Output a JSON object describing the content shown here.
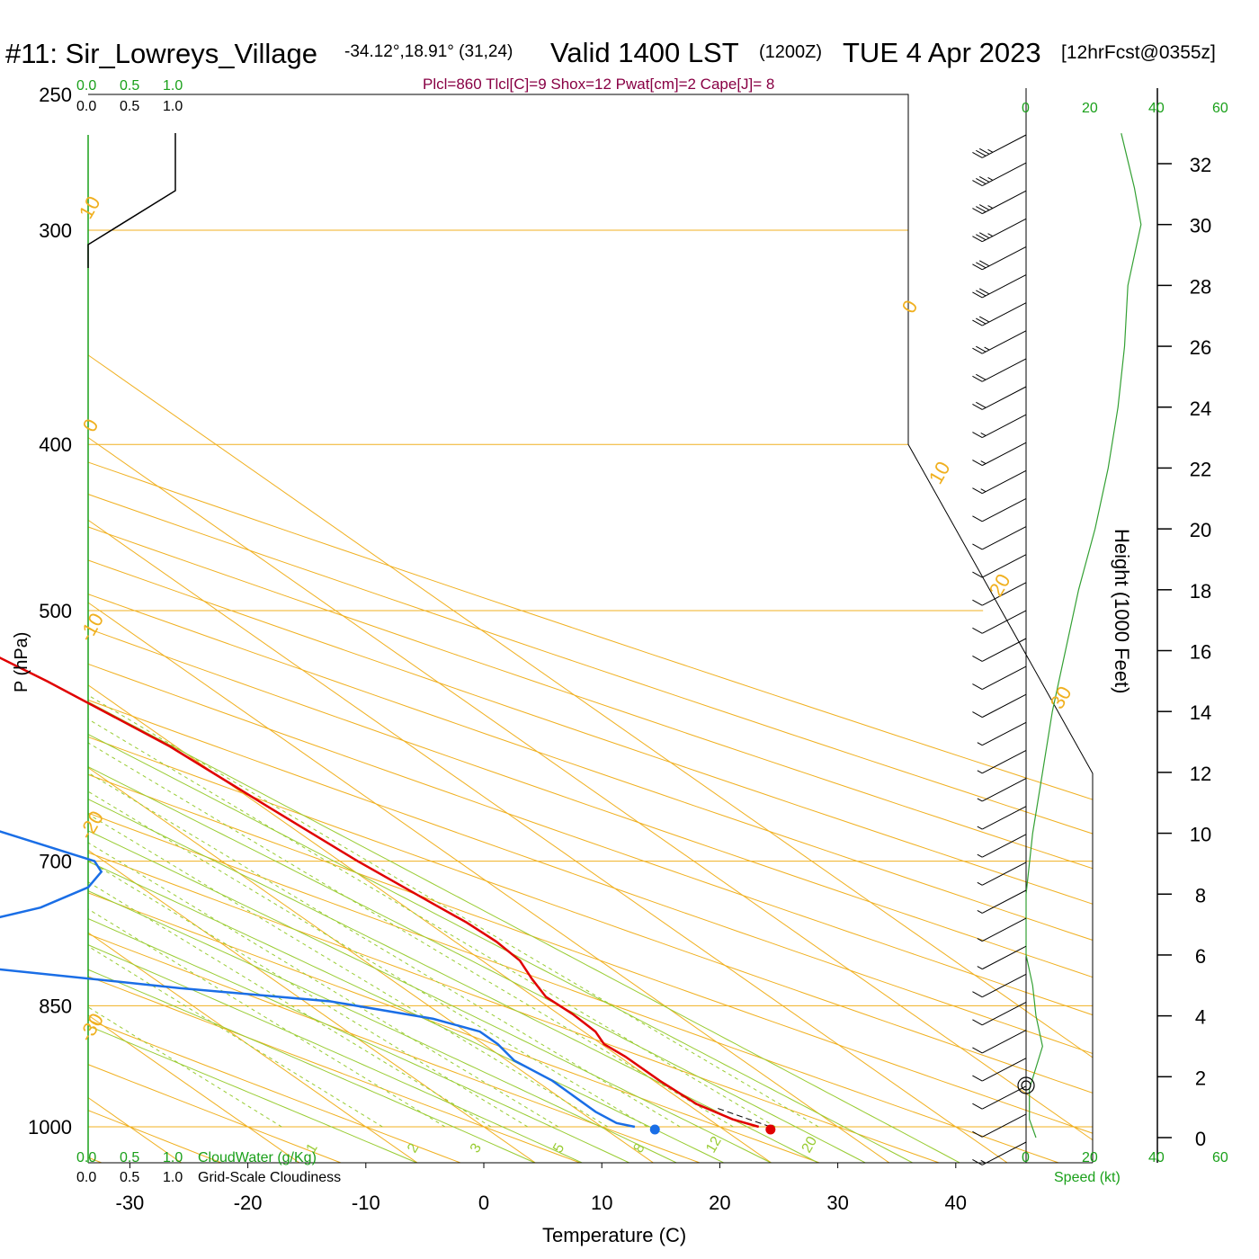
{
  "header": {
    "station": "#11: Sir_Lowreys_Village",
    "coords": "-34.12°,18.91° (31,24)",
    "valid": "Valid 1400 LST",
    "utc": "(1200Z)",
    "date": "TUE 4 Apr 2023",
    "forecast": "[12hrFcst@0355z]"
  },
  "diagnostics": "Plcl=860 Tlcl[C]=9 Shox=12 Pwat[cm]=2 Cape[J]= 8",
  "axes": {
    "ylabel": "P (hPa)",
    "xlabel": "Temperature (C)",
    "height_label": "Height (1000 Feet)",
    "speed_label": "Speed (kt)",
    "cloudwater_label": "CloudWater (g/Kg)",
    "cloudiness_label": "Grid-Scale Cloudiness"
  },
  "scale_labels": {
    "cloud_top_green": [
      "0.0",
      "0.5",
      "1.0"
    ],
    "cloud_top_black": [
      "0.0",
      "0.5",
      "1.0"
    ],
    "cloud_bottom_green": [
      "0.0",
      "0.5",
      "1.0"
    ],
    "cloud_bottom_black": [
      "0.0",
      "0.5",
      "1.0"
    ],
    "speed_top": [
      "0",
      "20",
      "40",
      "60"
    ],
    "speed_bottom": [
      "0",
      "20",
      "40",
      "60"
    ]
  },
  "colors": {
    "temperature": "#e00000",
    "dewpoint": "#1a6ee6",
    "isobar": "#f0b020",
    "dry_adiabat": "#f0b020",
    "moist_adiabat": "#99cc33",
    "mixing_ratio": "#99cc33",
    "wind_speed": "#33a033",
    "diagnostics": "#880044"
  },
  "chart_data": {
    "type": "skew-t",
    "pressure_ticks": [
      250,
      300,
      400,
      500,
      700,
      850,
      1000
    ],
    "temperature_ticks": [
      -30,
      -20,
      -10,
      0,
      10,
      20,
      30,
      40
    ],
    "height_ticks_kft": [
      0,
      2,
      4,
      6,
      8,
      10,
      12,
      14,
      16,
      18,
      20,
      22,
      24,
      26,
      28,
      30,
      32
    ],
    "isotherm_labels": [
      "10",
      "0",
      "-10",
      "-20",
      "-30",
      "0",
      "10",
      "20",
      "30"
    ],
    "mixing_ratio_labels": [
      "1",
      "2",
      "3",
      "5",
      "8",
      "12",
      "20"
    ],
    "surface_temperature_c": 24.3,
    "surface_dewpoint_c": 14.5,
    "temperature_profile": [
      {
        "p": 1000,
        "t": 23.3
      },
      {
        "p": 990,
        "t": 22.0
      },
      {
        "p": 970,
        "t": 20.8
      },
      {
        "p": 940,
        "t": 20.5
      },
      {
        "p": 910,
        "t": 20.5
      },
      {
        "p": 895,
        "t": 20.2
      },
      {
        "p": 880,
        "t": 21.0
      },
      {
        "p": 860,
        "t": 21.2
      },
      {
        "p": 840,
        "t": 21.0
      },
      {
        "p": 820,
        "t": 22.0
      },
      {
        "p": 800,
        "t": 23.2
      },
      {
        "p": 780,
        "t": 23.5
      },
      {
        "p": 760,
        "t": 23.3
      },
      {
        "p": 740,
        "t": 22.7
      },
      {
        "p": 700,
        "t": 21.5
      },
      {
        "p": 650,
        "t": 20.5
      },
      {
        "p": 600,
        "t": 19.5
      },
      {
        "p": 550,
        "t": 17.0
      },
      {
        "p": 500,
        "t": 13.5
      },
      {
        "p": 450,
        "t": 10.0
      },
      {
        "p": 400,
        "t": 5.0
      },
      {
        "p": 350,
        "t": -2.0
      },
      {
        "p": 300,
        "t": -9.8
      },
      {
        "p": 275,
        "t": -14.5
      },
      {
        "p": 260,
        "t": -17.5
      }
    ],
    "dewpoint_profile": [
      {
        "p": 1000,
        "t": 12.8
      },
      {
        "p": 995,
        "t": 11.7
      },
      {
        "p": 980,
        "t": 11.3
      },
      {
        "p": 940,
        "t": 11.4
      },
      {
        "p": 915,
        "t": 10.6
      },
      {
        "p": 895,
        "t": 11.2
      },
      {
        "p": 880,
        "t": 11.2
      },
      {
        "p": 865,
        "t": 8.8
      },
      {
        "p": 845,
        "t": 2.2
      },
      {
        "p": 830,
        "t": -9.0
      },
      {
        "p": 800,
        "t": -28.0
      },
      {
        "p": 790,
        "t": -34.0
      },
      {
        "p": 780,
        "t": -30.5
      },
      {
        "p": 765,
        "t": -20.5
      },
      {
        "p": 745,
        "t": -11.0
      },
      {
        "p": 725,
        "t": -4.5
      },
      {
        "p": 710,
        "t": -1.5
      },
      {
        "p": 700,
        "t": -0.8
      },
      {
        "p": 650,
        "t": -9.0
      },
      {
        "p": 620,
        "t": -15.0
      },
      {
        "p": 590,
        "t": -21.0
      },
      {
        "p": 550,
        "t": -24.5
      },
      {
        "p": 500,
        "t": -29.0
      },
      {
        "p": 450,
        "t": -40.0
      },
      {
        "p": 400,
        "t": -51.0
      },
      {
        "p": 370,
        "t": -58.5
      },
      {
        "p": 350,
        "t": -61.5
      },
      {
        "p": 330,
        "t": -59.0
      },
      {
        "p": 310,
        "t": -60.5
      },
      {
        "p": 300,
        "t": -62.5
      },
      {
        "p": 285,
        "t": -67.5
      },
      {
        "p": 260,
        "t": -72.0
      }
    ],
    "parcel_segment": [
      {
        "p": 1000,
        "t": 24.3
      },
      {
        "p": 975,
        "t": 22.0
      }
    ],
    "wind_speed_profile": [
      {
        "h": 0.0,
        "s": 3
      },
      {
        "h": 0.6,
        "s": 1
      },
      {
        "h": 1.6,
        "s": 1
      },
      {
        "h": 3.0,
        "s": 5
      },
      {
        "h": 4.0,
        "s": 3
      },
      {
        "h": 5.0,
        "s": 2
      },
      {
        "h": 6.0,
        "s": 0
      },
      {
        "h": 8.0,
        "s": 0
      },
      {
        "h": 10.0,
        "s": 2
      },
      {
        "h": 12.0,
        "s": 5
      },
      {
        "h": 14.0,
        "s": 8
      },
      {
        "h": 16.0,
        "s": 12
      },
      {
        "h": 18.0,
        "s": 16
      },
      {
        "h": 20.0,
        "s": 21
      },
      {
        "h": 22.0,
        "s": 25
      },
      {
        "h": 24.0,
        "s": 28
      },
      {
        "h": 26.0,
        "s": 30
      },
      {
        "h": 28.0,
        "s": 31
      },
      {
        "h": 30.0,
        "s": 35
      },
      {
        "h": 31.2,
        "s": 33
      },
      {
        "h": 33.0,
        "s": 29
      }
    ],
    "wind_barb_speeds": [
      35,
      35,
      35,
      35,
      30,
      30,
      30,
      25,
      20,
      20,
      15,
      15,
      15,
      10,
      10,
      10,
      10,
      10,
      10,
      10,
      10,
      5,
      5,
      5,
      5,
      5,
      5,
      5,
      5,
      5,
      10,
      10,
      10,
      10,
      10,
      10,
      15
    ]
  }
}
